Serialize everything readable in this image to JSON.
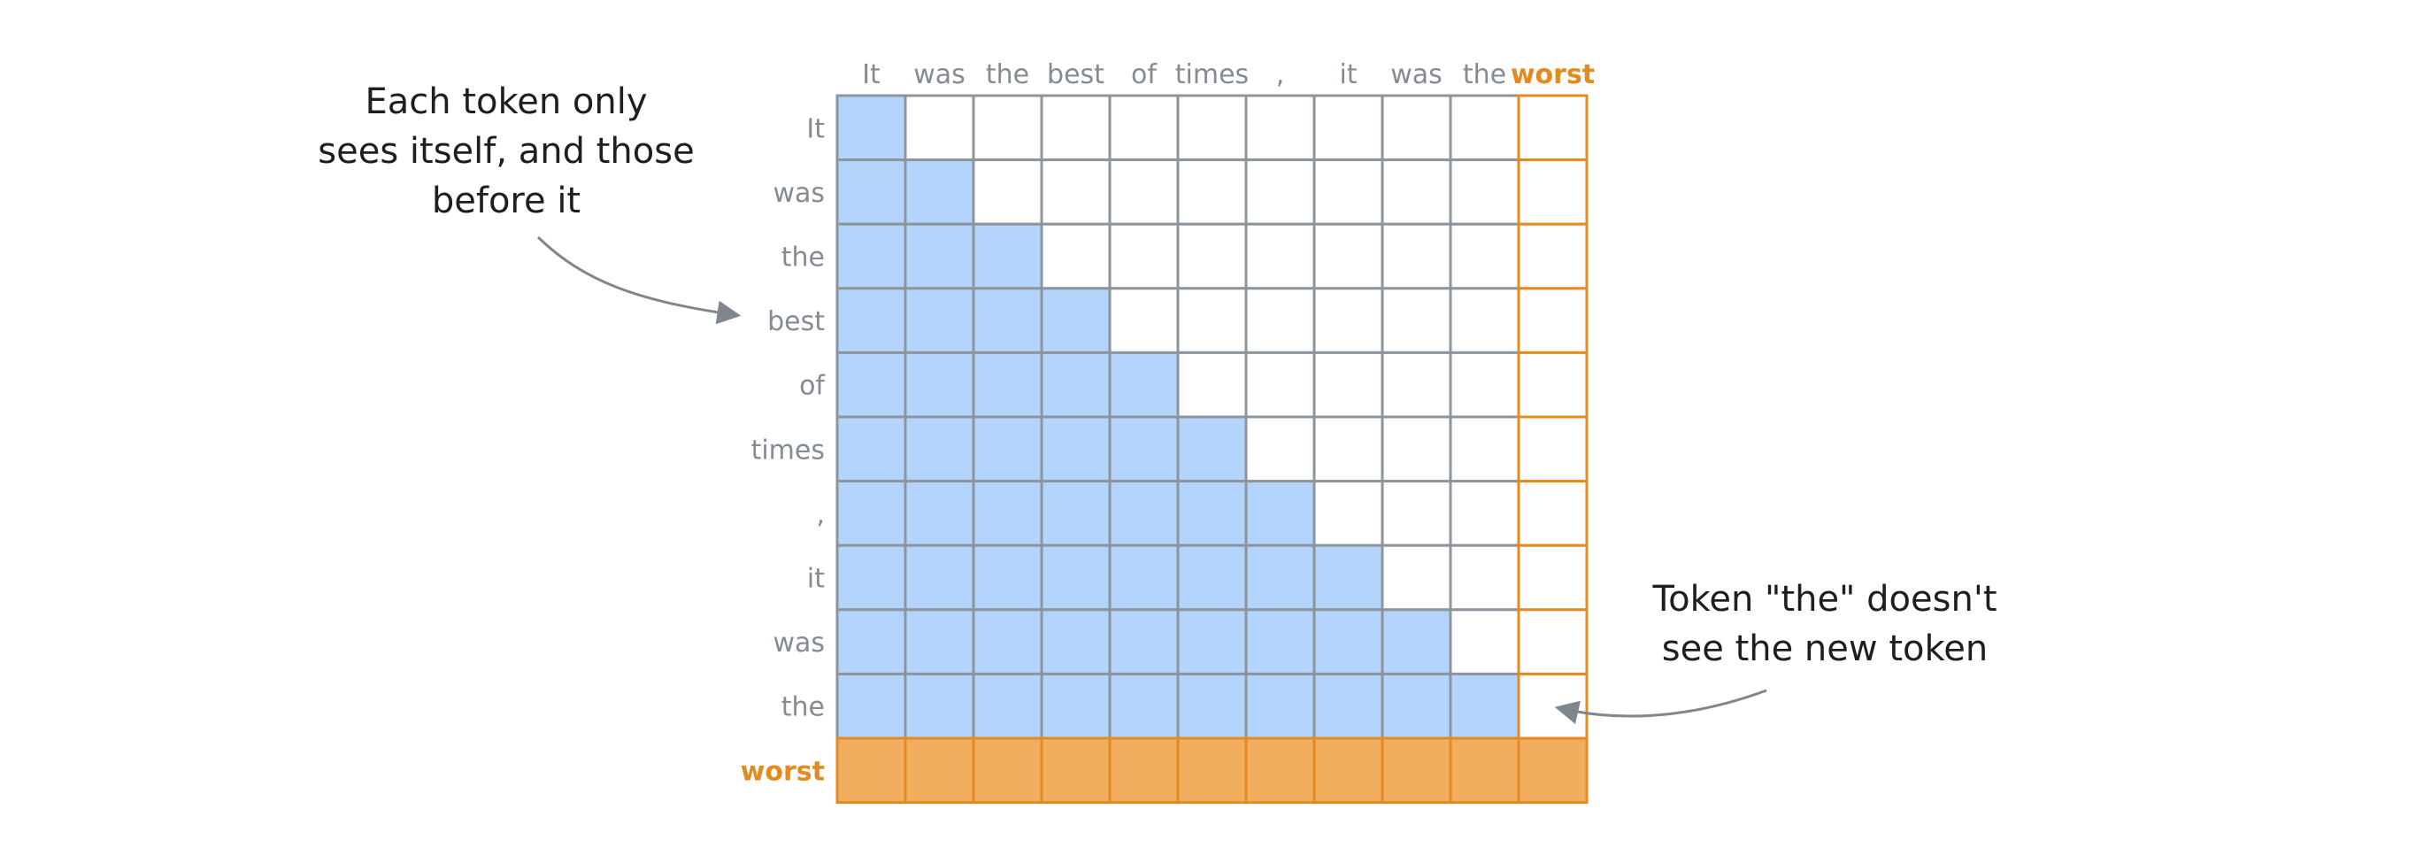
{
  "diagram": {
    "tokens": [
      "It",
      "was",
      "the",
      "best",
      "of",
      "times",
      ",",
      "it",
      "was",
      "the"
    ],
    "new_token": "worst",
    "left_note": {
      "lines": [
        "Each token only",
        "sees itself, and those",
        "before it"
      ]
    },
    "right_note": {
      "lines": [
        "Token \"the\" doesn't",
        "see the new token"
      ]
    },
    "colors": {
      "visible_fill": "#b3d4fc",
      "new_token_fill": "#f1ae5f",
      "new_token_accent": "#e48a1f",
      "grid_line": "#8d949c",
      "label_gray": "#848b93",
      "text_dark": "#1e1e1e",
      "arrow": "#7f868e"
    }
  }
}
